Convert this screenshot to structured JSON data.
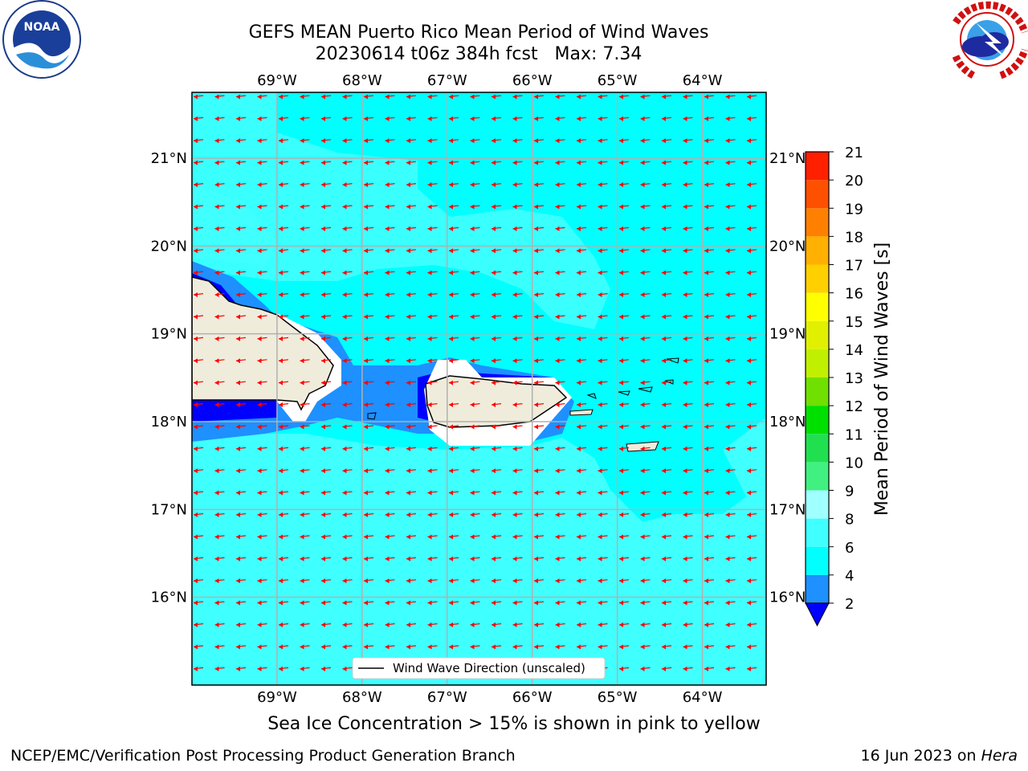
{
  "title": {
    "line1": "GEFS MEAN Puerto Rico Mean Period of Wind Waves",
    "line2": "20230614 t06z 384h fcst   Max: 7.34"
  },
  "logos": {
    "left": "NOAA",
    "left_ring": "NATIONAL OCEANIC AND ATMOSPHERIC ADMINISTRATION · U.S. DEPARTMENT OF COMMERCE",
    "right_ring": "NATIONAL WEATHER SERVICE"
  },
  "map": {
    "longitude_labels": [
      "69°W",
      "68°W",
      "67°W",
      "66°W",
      "65°W",
      "64°W"
    ],
    "latitude_labels": [
      "21°N",
      "20°N",
      "19°N",
      "18°N",
      "17°N",
      "16°N"
    ],
    "longitudes": [
      -69,
      -68,
      -67,
      -66,
      -65,
      -64
    ],
    "latitudes": [
      21,
      20,
      19,
      18,
      17,
      16
    ],
    "extent": {
      "lon": [
        -70.0,
        -63.25
      ],
      "lat": [
        15.0,
        21.75
      ]
    },
    "legend_label": "Wind Wave Direction (unscaled)",
    "arrow_color": "#ff0000",
    "land_color": "#efecdc"
  },
  "colorbar": {
    "label": "Mean Period of Wind Waves [s]",
    "tick_labels": [
      "2",
      "4",
      "6",
      "8",
      "9",
      "10",
      "11",
      "12",
      "13",
      "14",
      "15",
      "16",
      "17",
      "18",
      "19",
      "20",
      "21"
    ],
    "colors": [
      "#0000ff",
      "#1e90ff",
      "#00ffff",
      "#40ffff",
      "#a0ffff",
      "#40f080",
      "#20e050",
      "#00e000",
      "#70e000",
      "#c0f000",
      "#e0f000",
      "#ffff00",
      "#ffd000",
      "#ffb000",
      "#ff8000",
      "#ff5000",
      "#ff2000",
      "#ff0000"
    ],
    "under_color": "#0000ff"
  },
  "caption": "Sea Ice Concentration > 15% is shown in pink to yellow",
  "footer": {
    "left": "NCEP/EMC/Verification Post Processing Product Generation Branch",
    "right_date": "16 Jun 2023 on ",
    "right_host": "Hera"
  }
}
